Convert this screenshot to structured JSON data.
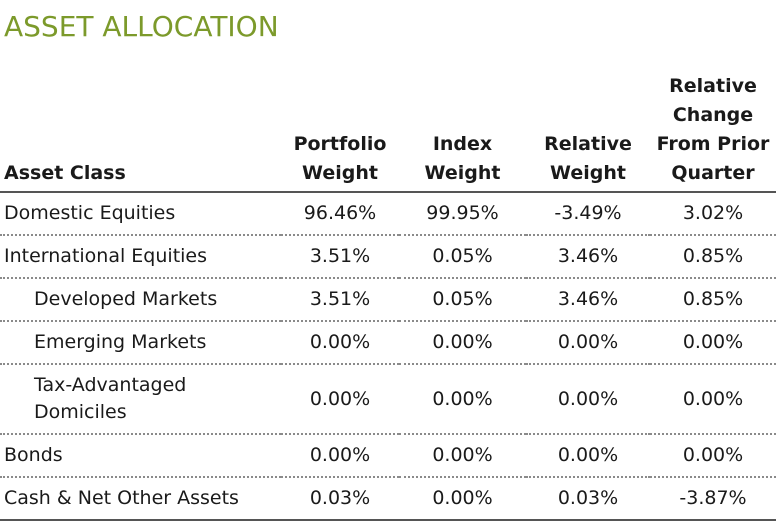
{
  "title": "ASSET ALLOCATION",
  "headers": [
    "Asset Class",
    "Portfolio Weight",
    "Index Weight",
    "Relative Weight",
    "Relative Change From Prior Quarter"
  ],
  "rows": [
    {
      "asset_class": "Domestic Equities",
      "portfolio_weight": "96.46%",
      "index_weight": "99.95%",
      "relative_weight": "-3.49%",
      "relative_change": "3.02%"
    },
    {
      "asset_class": "International Equities",
      "portfolio_weight": "3.51%",
      "index_weight": "0.05%",
      "relative_weight": "3.46%",
      "relative_change": "0.85%"
    },
    {
      "asset_class": "Developed Markets",
      "portfolio_weight": "3.51%",
      "index_weight": "0.05%",
      "relative_weight": "3.46%",
      "relative_change": "0.85%"
    },
    {
      "asset_class": "Emerging Markets",
      "portfolio_weight": "0.00%",
      "index_weight": "0.00%",
      "relative_weight": "0.00%",
      "relative_change": "0.00%"
    },
    {
      "asset_class": "Tax-Advantaged Domiciles",
      "portfolio_weight": "0.00%",
      "index_weight": "0.00%",
      "relative_weight": "0.00%",
      "relative_change": "0.00%"
    },
    {
      "asset_class": "Bonds",
      "portfolio_weight": "0.00%",
      "index_weight": "0.00%",
      "relative_weight": "0.00%",
      "relative_change": "0.00%"
    },
    {
      "asset_class": "Cash & Net Other Assets",
      "portfolio_weight": "0.03%",
      "index_weight": "0.00%",
      "relative_weight": "0.03%",
      "relative_change": "-3.87%"
    }
  ],
  "colors": {
    "title": "#7c9a2b",
    "rule": "#555555",
    "dotted_rule": "#8a8a8a"
  }
}
